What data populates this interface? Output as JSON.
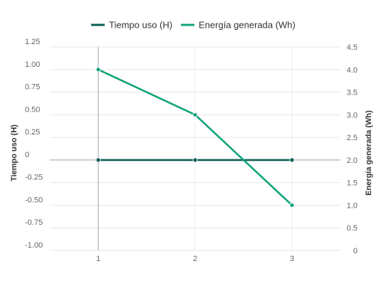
{
  "chart_data": {
    "type": "line",
    "x": [
      1,
      2,
      3
    ],
    "x_tick_labels": [
      "1",
      "2",
      "3"
    ],
    "series": [
      {
        "name": "Tiempo uso (H)",
        "axis": "left",
        "color": "#0b5e52",
        "values": [
          0,
          0,
          0
        ]
      },
      {
        "name": "Energía generada (Wh)",
        "axis": "right",
        "color": "#10a47a",
        "values": [
          4.0,
          3.0,
          1.0
        ]
      }
    ],
    "left_axis": {
      "label": "Tiempo uso (H)",
      "ylim": [
        -1.0,
        1.25
      ],
      "ticks": [
        1.25,
        1.0,
        0.75,
        0.5,
        0.25,
        0,
        -0.25,
        -0.5,
        -0.75,
        -1.0
      ],
      "tick_labels": [
        "1.25",
        "1.00",
        "0.75",
        "0.50",
        "0.25",
        "0",
        "-0.25",
        "-0.50",
        "-0.75",
        "-1.00"
      ]
    },
    "right_axis": {
      "label": "Energía generada (Wh)",
      "ylim": [
        0,
        4.5
      ],
      "ticks": [
        4.5,
        4.0,
        3.5,
        3.0,
        2.5,
        2.0,
        1.5,
        1.0,
        0.5,
        0
      ],
      "tick_labels": [
        "4.5",
        "4.0",
        "3.5",
        "3.0",
        "2.5",
        "2.0",
        "1.5",
        "1.0",
        "0.5",
        "0"
      ]
    },
    "legend_position": "top",
    "grid": true
  }
}
